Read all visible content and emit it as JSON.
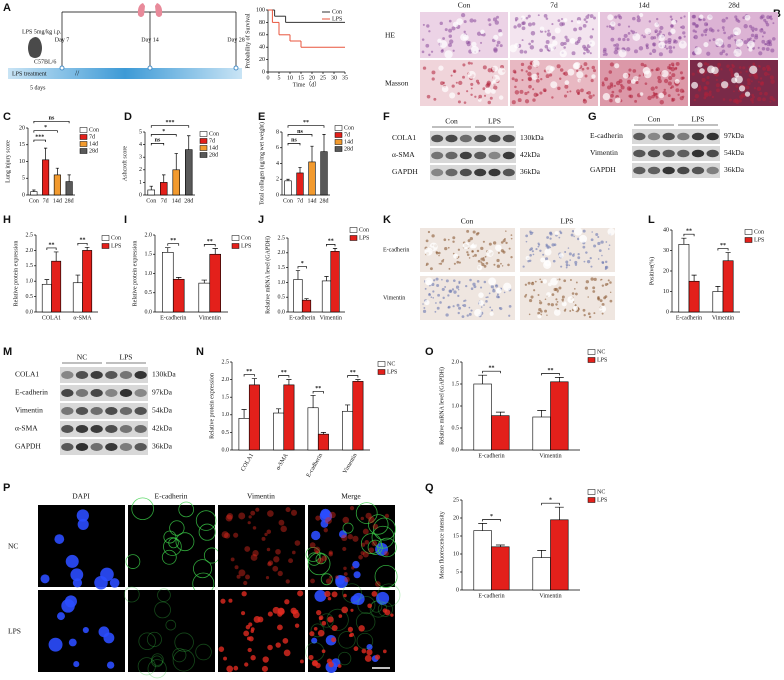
{
  "figure": {
    "panel_labels": [
      "A",
      "B",
      "C",
      "D",
      "E",
      "F",
      "G",
      "H",
      "I",
      "J",
      "K",
      "L",
      "M",
      "N",
      "O",
      "P",
      "Q"
    ],
    "timeline": {
      "dose": "LPS 5mg/kg i.p.",
      "strain": "C57BL/6",
      "days": [
        "Day 7",
        "Day 14",
        "Day 28"
      ],
      "treatment": "LPS  treatment",
      "duration": "5 days"
    },
    "histology": {
      "stains": [
        "HE",
        "Masson"
      ],
      "groups": [
        "Con",
        "7d",
        "14d",
        "28d"
      ]
    },
    "blot_f": {
      "groups": [
        "Con",
        "LPS"
      ],
      "proteins": [
        "COLA1",
        "α-SMA",
        "GAPDH"
      ],
      "sizes": [
        "130kDa",
        "42kDa",
        "36kDa"
      ]
    },
    "blot_g": {
      "groups": [
        "Con",
        "LPS"
      ],
      "proteins": [
        "E-cadherin",
        "Vimentin",
        "GAPDH"
      ],
      "sizes": [
        "97kDa",
        "54kDa",
        "36kDa"
      ]
    },
    "ihc": {
      "groups": [
        "Con",
        "LPS"
      ],
      "markers": [
        "E-cadherin",
        "Vimentin"
      ]
    },
    "blot_m": {
      "groups": [
        "NC",
        "LPS"
      ],
      "proteins": [
        "COLA1",
        "E-cadherin",
        "Vimentin",
        "α-SMA",
        "GAPDH"
      ],
      "sizes": [
        "130kDa",
        "97kDa",
        "54kDa",
        "42kDa",
        "36kDa"
      ]
    },
    "immunofluorescence": {
      "channels": [
        "DAPI",
        "E-cadherin",
        "Vimentin",
        "Merge"
      ],
      "groups": [
        "NC",
        "LPS"
      ]
    }
  },
  "chart_data": [
    {
      "type": "line",
      "ylabel": "Probability of Survival",
      "xlabel": "Time（d）",
      "step": true,
      "xlim": [
        0,
        35
      ],
      "xticks": [
        0,
        5,
        10,
        15,
        20,
        25,
        30,
        35
      ],
      "ylim": [
        0,
        100
      ],
      "yticks": [
        0,
        20,
        40,
        60,
        80,
        100
      ],
      "series": [
        {
          "name": "Con",
          "color": "#333333",
          "x": [
            0,
            3,
            8,
            35
          ],
          "values": [
            100,
            90,
            80,
            80
          ]
        },
        {
          "name": "LPS",
          "color": "#e8553d",
          "x": [
            0,
            2,
            5,
            10,
            15,
            35
          ],
          "values": [
            100,
            80,
            60,
            50,
            40,
            40
          ]
        }
      ]
    },
    {
      "type": "bar",
      "ylabel": "Lung injury score",
      "categories": [
        "Con",
        "7d",
        "14d",
        "28d"
      ],
      "values": [
        1,
        10.5,
        6,
        4
      ],
      "errors": [
        0.5,
        3.5,
        2,
        2
      ],
      "colors": [
        "#ffffff",
        "#e3201b",
        "#f29a2e",
        "#595959"
      ],
      "significance": [
        null,
        "***",
        "*",
        "ns"
      ],
      "ylim": [
        0,
        20
      ],
      "yticks": [
        0,
        5,
        10,
        15,
        20
      ],
      "legend": true
    },
    {
      "type": "bar",
      "ylabel": "Ashcroft score",
      "categories": [
        "Con",
        "7d",
        "14d",
        "28d"
      ],
      "values": [
        0.4,
        1.0,
        2.0,
        3.6
      ],
      "errors": [
        0.3,
        0.6,
        1.3,
        1.1
      ],
      "colors": [
        "#ffffff",
        "#e3201b",
        "#f29a2e",
        "#595959"
      ],
      "significance": [
        null,
        "ns",
        "*",
        "***"
      ],
      "ylim": [
        0,
        5
      ],
      "yticks": [
        0,
        1,
        2,
        3,
        4,
        5
      ],
      "legend": true
    },
    {
      "type": "bar",
      "ylabel": "Total collagen (ug/mg wet weight)",
      "categories": [
        "Con",
        "7d",
        "14d",
        "28d"
      ],
      "values": [
        1.8,
        2.8,
        4.2,
        5.5
      ],
      "errors": [
        0.2,
        0.7,
        2.0,
        2.2
      ],
      "colors": [
        "#ffffff",
        "#e3201b",
        "#f29a2e",
        "#595959"
      ],
      "significance": [
        null,
        "ns",
        "ns",
        "**"
      ],
      "ylim": [
        0,
        8
      ],
      "yticks": [
        0,
        2,
        4,
        6,
        8
      ],
      "legend": true
    },
    {
      "type": "bar",
      "ylabel": "Relative protein expression",
      "categories": [
        "COLA1",
        "α-SMA"
      ],
      "series": [
        {
          "name": "Con",
          "color": "#ffffff",
          "values": [
            0.9,
            0.95
          ],
          "errors": [
            0.15,
            0.25
          ]
        },
        {
          "name": "LPS",
          "color": "#e3201b",
          "values": [
            1.65,
            2.0
          ],
          "errors": [
            0.3,
            0.1
          ]
        }
      ],
      "significance": [
        "**",
        "**"
      ],
      "ylim": [
        0,
        2.5
      ],
      "yticks": [
        {
          "value": 0,
          "label": "0.0"
        },
        0.5,
        {
          "value": 1,
          "label": "1.0"
        },
        1.5,
        {
          "value": 2,
          "label": "2.0"
        },
        2.5
      ],
      "legend": true
    },
    {
      "type": "bar",
      "ylabel": "Relative protein expression",
      "categories": [
        "E-cadherin",
        "Vimentin"
      ],
      "series": [
        {
          "name": "Con",
          "color": "#ffffff",
          "values": [
            1.55,
            0.75
          ],
          "errors": [
            0.12,
            0.08
          ]
        },
        {
          "name": "LPS",
          "color": "#e3201b",
          "values": [
            0.85,
            1.5
          ],
          "errors": [
            0.05,
            0.15
          ]
        }
      ],
      "significance": [
        "**",
        "**"
      ],
      "ylim": [
        0,
        2.0
      ],
      "yticks": [
        {
          "value": 0,
          "label": "0.0"
        },
        0.5,
        {
          "value": 1,
          "label": "1.0"
        },
        1.5,
        {
          "value": 2,
          "label": "2.0"
        }
      ],
      "legend": true
    },
    {
      "type": "bar",
      "ylabel": "Relative mRNA level (GAPDH)",
      "categories": [
        "E-cadherin",
        "Vimentin"
      ],
      "series": [
        {
          "name": "Con",
          "color": "#ffffff",
          "values": [
            1.1,
            1.05
          ],
          "errors": [
            0.3,
            0.15
          ]
        },
        {
          "name": "LPS",
          "color": "#e3201b",
          "values": [
            0.4,
            2.05
          ],
          "errors": [
            0.05,
            0.1
          ]
        }
      ],
      "significance": [
        "*",
        "**"
      ],
      "ylim": [
        0,
        2.5
      ],
      "yticks": [
        {
          "value": 0,
          "label": "0.0"
        },
        0.5,
        {
          "value": 1,
          "label": "1.0"
        },
        1.5,
        {
          "value": 2,
          "label": "2.0"
        },
        2.5
      ],
      "legend": true
    },
    {
      "type": "bar",
      "ylabel": "Positive(%)",
      "categories": [
        "E-cadherin",
        "Vimentin"
      ],
      "series": [
        {
          "name": "Con",
          "color": "#ffffff",
          "values": [
            33,
            10
          ],
          "errors": [
            3,
            2.5
          ]
        },
        {
          "name": "LPS",
          "color": "#e3201b",
          "values": [
            15,
            25
          ],
          "errors": [
            3,
            4
          ]
        }
      ],
      "significance": [
        "**",
        "**"
      ],
      "ylim": [
        0,
        40
      ],
      "yticks": [
        0,
        10,
        20,
        30,
        40
      ],
      "legend": true
    },
    {
      "type": "bar",
      "ylabel": "Relative protein expression",
      "categories": [
        "COLA1",
        "α-SMA",
        "E-cadherin",
        "Vimentin"
      ],
      "series": [
        {
          "name": "NC",
          "color": "#ffffff",
          "values": [
            0.9,
            1.05,
            1.2,
            1.1
          ],
          "errors": [
            0.25,
            0.12,
            0.35,
            0.18
          ]
        },
        {
          "name": "LPS",
          "color": "#e3201b",
          "values": [
            1.85,
            1.85,
            0.45,
            1.95
          ],
          "errors": [
            0.18,
            0.15,
            0.05,
            0.05
          ]
        }
      ],
      "significance": [
        "**",
        "**",
        "**",
        "**"
      ],
      "ylim": [
        0,
        2.5
      ],
      "yticks": [
        {
          "value": 0,
          "label": "0.0"
        },
        0.5,
        {
          "value": 1,
          "label": "1.0"
        },
        1.5,
        {
          "value": 2,
          "label": "2.0"
        },
        2.5
      ],
      "legend": true
    },
    {
      "type": "bar",
      "ylabel": "Relative mRNA level (GAPDH)",
      "categories": [
        "E-cadherin",
        "Vimentin"
      ],
      "series": [
        {
          "name": "NC",
          "color": "#ffffff",
          "values": [
            1.5,
            0.75
          ],
          "errors": [
            0.2,
            0.15
          ]
        },
        {
          "name": "LPS",
          "color": "#e3201b",
          "values": [
            0.78,
            1.55
          ],
          "errors": [
            0.08,
            0.1
          ]
        }
      ],
      "significance": [
        "**",
        "**"
      ],
      "ylim": [
        0,
        2.0
      ],
      "yticks": [
        {
          "value": 0,
          "label": "0.0"
        },
        0.5,
        {
          "value": 1,
          "label": "1.0"
        },
        1.5,
        {
          "value": 2,
          "label": "2.0"
        }
      ],
      "legend": true
    },
    {
      "type": "bar",
      "ylabel": "Mean fluorescence intensity",
      "categories": [
        "E-cadherin",
        "Vimentin"
      ],
      "series": [
        {
          "name": "NC",
          "color": "#ffffff",
          "values": [
            16.5,
            9
          ],
          "errors": [
            2,
            2
          ]
        },
        {
          "name": "LPS",
          "color": "#e3201b",
          "values": [
            12,
            19.5
          ],
          "errors": [
            0.5,
            3.5
          ]
        }
      ],
      "significance": [
        "*",
        "*"
      ],
      "ylim": [
        0,
        25
      ],
      "yticks": [
        0,
        5,
        10,
        15,
        20,
        25
      ],
      "legend": true
    }
  ]
}
